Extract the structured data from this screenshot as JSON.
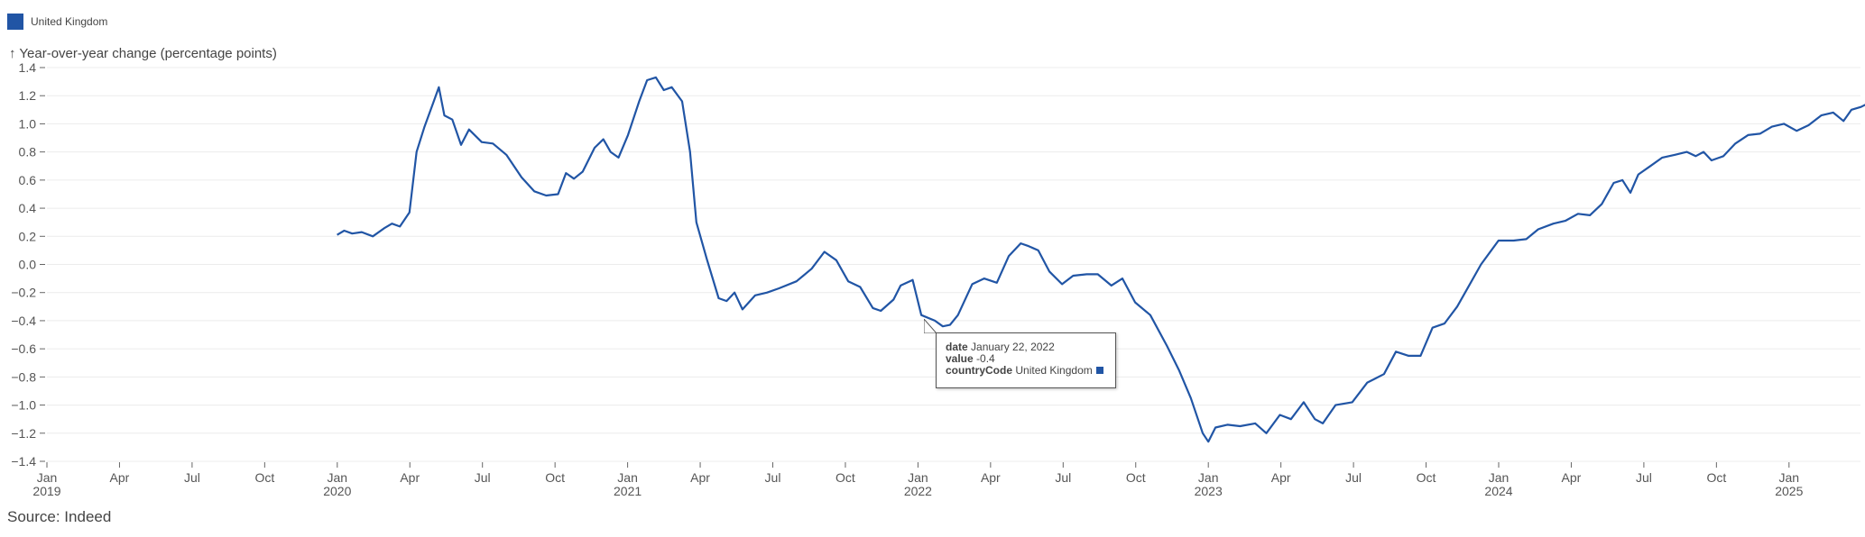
{
  "legend": {
    "label": "United Kingdom",
    "color": "#2155a5"
  },
  "y_axis_title": "↑ Year-over-year change (percentage points)",
  "source": "Source: Indeed",
  "tooltip": {
    "date_key": "date",
    "date_value": "January 22, 2022",
    "value_key": "value",
    "value_value": "-0.4",
    "country_key": "countryCode",
    "country_value": "United Kingdom"
  },
  "chart_data": {
    "type": "line",
    "title": "",
    "xlabel": "",
    "ylabel": "Year-over-year change (percentage points)",
    "ylim": [
      -1.4,
      1.4
    ],
    "xlim": [
      "2019-01",
      "2025-05"
    ],
    "grid": true,
    "legend_position": "top-left",
    "y_ticks": [
      "1.4",
      "1.2",
      "1.0",
      "0.8",
      "0.6",
      "0.4",
      "0.2",
      "0.0",
      "-0.2",
      "-0.4",
      "-0.6",
      "-0.8",
      "-1.0",
      "-1.2",
      "-1.4"
    ],
    "x_ticks": [
      {
        "label": "Jan",
        "year": "2019"
      },
      {
        "label": "Apr"
      },
      {
        "label": "Jul"
      },
      {
        "label": "Oct"
      },
      {
        "label": "Jan",
        "year": "2020"
      },
      {
        "label": "Apr"
      },
      {
        "label": "Jul"
      },
      {
        "label": "Oct"
      },
      {
        "label": "Jan",
        "year": "2021"
      },
      {
        "label": "Apr"
      },
      {
        "label": "Jul"
      },
      {
        "label": "Oct"
      },
      {
        "label": "Jan",
        "year": "2022"
      },
      {
        "label": "Apr"
      },
      {
        "label": "Jul"
      },
      {
        "label": "Oct"
      },
      {
        "label": "Jan",
        "year": "2023"
      },
      {
        "label": "Apr"
      },
      {
        "label": "Jul"
      },
      {
        "label": "Oct"
      },
      {
        "label": "Jan",
        "year": "2024"
      },
      {
        "label": "Apr"
      },
      {
        "label": "Jul"
      },
      {
        "label": "Oct"
      },
      {
        "label": "Jan",
        "year": "2025"
      }
    ],
    "series": [
      {
        "name": "United Kingdom",
        "color": "#2155a5",
        "points": [
          [
            "2020-01-01",
            0.21
          ],
          [
            "2020-01-10",
            0.24
          ],
          [
            "2020-01-20",
            0.22
          ],
          [
            "2020-02-01",
            0.23
          ],
          [
            "2020-02-15",
            0.2
          ],
          [
            "2020-03-01",
            0.26
          ],
          [
            "2020-03-10",
            0.29
          ],
          [
            "2020-03-20",
            0.27
          ],
          [
            "2020-04-01",
            0.37
          ],
          [
            "2020-04-10",
            0.8
          ],
          [
            "2020-04-20",
            0.98
          ],
          [
            "2020-05-01",
            1.15
          ],
          [
            "2020-05-08",
            1.26
          ],
          [
            "2020-05-15",
            1.06
          ],
          [
            "2020-05-25",
            1.03
          ],
          [
            "2020-06-05",
            0.85
          ],
          [
            "2020-06-15",
            0.96
          ],
          [
            "2020-07-01",
            0.87
          ],
          [
            "2020-07-15",
            0.86
          ],
          [
            "2020-08-01",
            0.78
          ],
          [
            "2020-08-20",
            0.62
          ],
          [
            "2020-09-05",
            0.52
          ],
          [
            "2020-09-20",
            0.49
          ],
          [
            "2020-10-05",
            0.5
          ],
          [
            "2020-10-15",
            0.65
          ],
          [
            "2020-10-25",
            0.61
          ],
          [
            "2020-11-05",
            0.66
          ],
          [
            "2020-11-20",
            0.83
          ],
          [
            "2020-12-01",
            0.89
          ],
          [
            "2020-12-10",
            0.8
          ],
          [
            "2020-12-20",
            0.76
          ],
          [
            "2021-01-01",
            0.92
          ],
          [
            "2021-01-15",
            1.16
          ],
          [
            "2021-01-25",
            1.31
          ],
          [
            "2021-02-05",
            1.33
          ],
          [
            "2021-02-15",
            1.24
          ],
          [
            "2021-02-25",
            1.26
          ],
          [
            "2021-03-10",
            1.16
          ],
          [
            "2021-03-20",
            0.8
          ],
          [
            "2021-03-28",
            0.3
          ],
          [
            "2021-04-10",
            0.04
          ],
          [
            "2021-04-25",
            -0.24
          ],
          [
            "2021-05-05",
            -0.26
          ],
          [
            "2021-05-15",
            -0.2
          ],
          [
            "2021-05-25",
            -0.32
          ],
          [
            "2021-06-10",
            -0.22
          ],
          [
            "2021-06-25",
            -0.2
          ],
          [
            "2021-07-10",
            -0.17
          ],
          [
            "2021-08-01",
            -0.12
          ],
          [
            "2021-08-20",
            -0.03
          ],
          [
            "2021-09-05",
            0.09
          ],
          [
            "2021-09-20",
            0.03
          ],
          [
            "2021-10-05",
            -0.12
          ],
          [
            "2021-10-20",
            -0.16
          ],
          [
            "2021-11-05",
            -0.31
          ],
          [
            "2021-11-15",
            -0.33
          ],
          [
            "2021-12-01",
            -0.25
          ],
          [
            "2021-12-10",
            -0.15
          ],
          [
            "2021-12-25",
            -0.11
          ],
          [
            "2022-01-05",
            -0.36
          ],
          [
            "2022-01-22",
            -0.4
          ],
          [
            "2022-02-01",
            -0.44
          ],
          [
            "2022-02-10",
            -0.43
          ],
          [
            "2022-02-20",
            -0.36
          ],
          [
            "2022-03-10",
            -0.14
          ],
          [
            "2022-03-25",
            -0.1
          ],
          [
            "2022-04-10",
            -0.13
          ],
          [
            "2022-04-25",
            0.06
          ],
          [
            "2022-05-10",
            0.15
          ],
          [
            "2022-05-20",
            0.13
          ],
          [
            "2022-06-01",
            0.1
          ],
          [
            "2022-06-15",
            -0.05
          ],
          [
            "2022-07-01",
            -0.14
          ],
          [
            "2022-07-15",
            -0.08
          ],
          [
            "2022-08-01",
            -0.07
          ],
          [
            "2022-08-15",
            -0.07
          ],
          [
            "2022-09-01",
            -0.15
          ],
          [
            "2022-09-15",
            -0.1
          ],
          [
            "2022-10-01",
            -0.27
          ],
          [
            "2022-10-20",
            -0.36
          ],
          [
            "2022-11-10",
            -0.58
          ],
          [
            "2022-11-25",
            -0.75
          ],
          [
            "2022-12-10",
            -0.95
          ],
          [
            "2022-12-25",
            -1.2
          ],
          [
            "2023-01-01",
            -1.26
          ],
          [
            "2023-01-10",
            -1.16
          ],
          [
            "2023-01-25",
            -1.14
          ],
          [
            "2023-02-10",
            -1.15
          ],
          [
            "2023-03-01",
            -1.13
          ],
          [
            "2023-03-15",
            -1.2
          ],
          [
            "2023-04-01",
            -1.07
          ],
          [
            "2023-04-15",
            -1.1
          ],
          [
            "2023-05-01",
            -0.98
          ],
          [
            "2023-05-15",
            -1.1
          ],
          [
            "2023-05-25",
            -1.13
          ],
          [
            "2023-06-10",
            -1.0
          ],
          [
            "2023-07-01",
            -0.98
          ],
          [
            "2023-07-20",
            -0.84
          ],
          [
            "2023-08-10",
            -0.78
          ],
          [
            "2023-08-25",
            -0.62
          ],
          [
            "2023-09-10",
            -0.65
          ],
          [
            "2023-09-25",
            -0.65
          ],
          [
            "2023-10-10",
            -0.45
          ],
          [
            "2023-10-25",
            -0.42
          ],
          [
            "2023-11-10",
            -0.3
          ],
          [
            "2023-11-25",
            -0.15
          ],
          [
            "2023-12-10",
            0.0
          ],
          [
            "2024-01-01",
            0.17
          ],
          [
            "2024-01-20",
            0.17
          ],
          [
            "2024-02-05",
            0.18
          ],
          [
            "2024-02-20",
            0.25
          ],
          [
            "2024-03-10",
            0.29
          ],
          [
            "2024-03-25",
            0.31
          ],
          [
            "2024-04-10",
            0.36
          ],
          [
            "2024-04-25",
            0.35
          ],
          [
            "2024-05-10",
            0.43
          ],
          [
            "2024-05-25",
            0.58
          ],
          [
            "2024-06-05",
            0.6
          ],
          [
            "2024-06-15",
            0.51
          ],
          [
            "2024-06-25",
            0.64
          ],
          [
            "2024-07-10",
            0.7
          ],
          [
            "2024-07-25",
            0.76
          ],
          [
            "2024-08-10",
            0.78
          ],
          [
            "2024-08-25",
            0.8
          ],
          [
            "2024-09-05",
            0.77
          ],
          [
            "2024-09-15",
            0.8
          ],
          [
            "2024-09-25",
            0.74
          ],
          [
            "2024-10-10",
            0.77
          ],
          [
            "2024-10-25",
            0.86
          ],
          [
            "2024-11-10",
            0.92
          ],
          [
            "2024-11-25",
            0.93
          ],
          [
            "2024-12-10",
            0.98
          ],
          [
            "2024-12-25",
            1.0
          ],
          [
            "2025-01-10",
            0.95
          ],
          [
            "2025-01-25",
            0.99
          ],
          [
            "2025-02-10",
            1.06
          ],
          [
            "2025-02-25",
            1.08
          ],
          [
            "2025-03-10",
            1.02
          ],
          [
            "2025-03-20",
            1.1
          ],
          [
            "2025-04-01",
            1.12
          ],
          [
            "2025-04-15",
            1.16
          ],
          [
            "2025-04-25",
            1.13
          ],
          [
            "2025-05-05",
            1.22
          ],
          [
            "2025-05-15",
            1.22
          ]
        ]
      }
    ]
  }
}
